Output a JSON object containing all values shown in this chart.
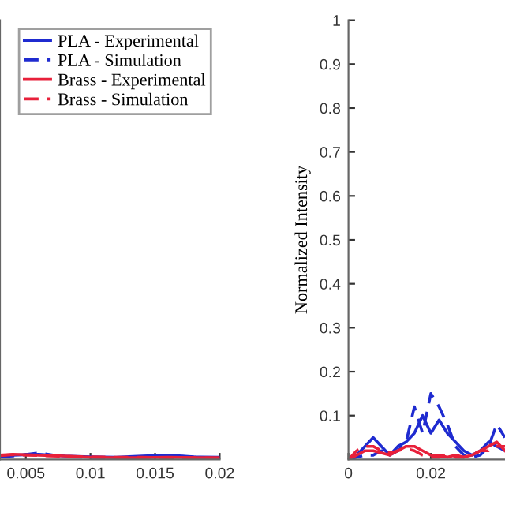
{
  "chart_data": [
    {
      "type": "line",
      "x": [
        0.003,
        0.004,
        0.006,
        0.008,
        0.01,
        0.012,
        0.014,
        0.016,
        0.018,
        0.02
      ],
      "xlim": [
        0.003,
        0.02
      ],
      "xticks": [
        0.005,
        0.01,
        0.015,
        0.02
      ],
      "ylim": [
        0,
        1
      ],
      "tick_labels": "x",
      "legend": "top right",
      "grid": false,
      "series": [
        {
          "name": "PLA - Experimental",
          "color": "#1f2bd0",
          "line_style": "solid",
          "values": [
            0.008,
            0.01,
            0.012,
            0.008,
            0.006,
            0.005,
            0.008,
            0.01,
            0.006,
            0.005
          ]
        },
        {
          "name": "PLA - Simulation",
          "color": "#1f2bd0",
          "line_style": "dashed",
          "values": [
            0.006,
            0.008,
            0.015,
            0.006,
            0.005,
            0.004,
            0.006,
            0.009,
            0.005,
            0.004
          ]
        },
        {
          "name": "Brass - Experimental",
          "color": "#e8203a",
          "line_style": "solid",
          "values": [
            0.01,
            0.012,
            0.01,
            0.008,
            0.005,
            0.004,
            0.004,
            0.005,
            0.004,
            0.004
          ]
        },
        {
          "name": "Brass - Simulation",
          "color": "#e8203a",
          "line_style": "dashed",
          "values": [
            0.009,
            0.011,
            0.009,
            0.007,
            0.006,
            0.005,
            0.005,
            0.004,
            0.004,
            0.003
          ]
        }
      ]
    },
    {
      "type": "line",
      "x": [
        0,
        0.002,
        0.004,
        0.006,
        0.008,
        0.01,
        0.012,
        0.014,
        0.016,
        0.018,
        0.02,
        0.022,
        0.024,
        0.026,
        0.028,
        0.03,
        0.032,
        0.034,
        0.036,
        0.038
      ],
      "xlim": [
        0,
        0.038
      ],
      "xticks": [
        0,
        0.02
      ],
      "ylim": [
        0,
        1
      ],
      "yticks": [
        0.1,
        0.2,
        0.3,
        0.4,
        0.5,
        0.6,
        0.7,
        0.8,
        0.9,
        1
      ],
      "ylabel": "Normalized Intensity",
      "grid": false,
      "series": [
        {
          "color": "#1f2bd0",
          "line_style": "solid",
          "values": [
            0,
            0.01,
            0.03,
            0.05,
            0.03,
            0.01,
            0.03,
            0.04,
            0.06,
            0.1,
            0.06,
            0.09,
            0.06,
            0.04,
            0.02,
            0.01,
            0.02,
            0.04,
            0.03,
            0.02
          ]
        },
        {
          "color": "#1f2bd0",
          "line_style": "dashed",
          "values": [
            0,
            0.005,
            0.01,
            0.01,
            0.02,
            0.01,
            0.02,
            0.04,
            0.12,
            0.06,
            0.15,
            0.12,
            0.08,
            0.03,
            0.01,
            0.005,
            0.01,
            0.03,
            0.08,
            0.05
          ]
        },
        {
          "color": "#e8203a",
          "line_style": "solid",
          "values": [
            0,
            0.01,
            0.02,
            0.02,
            0.015,
            0.01,
            0.02,
            0.03,
            0.03,
            0.02,
            0.01,
            0.01,
            0.005,
            0.01,
            0.005,
            0.01,
            0.02,
            0.03,
            0.04,
            0.02
          ]
        },
        {
          "color": "#e8203a",
          "line_style": "dashed",
          "values": [
            0,
            0.02,
            0.03,
            0.03,
            0.02,
            0.015,
            0.02,
            0.025,
            0.02,
            0.01,
            0.005,
            0.005,
            0.01,
            0.005,
            0.005,
            0.01,
            0.02,
            0.02,
            0.03,
            0.03
          ]
        }
      ]
    }
  ]
}
